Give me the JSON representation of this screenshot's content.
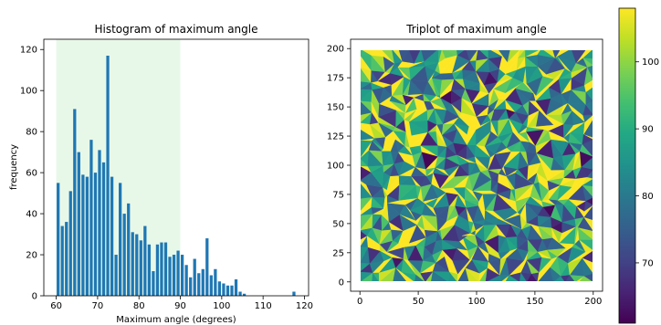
{
  "chart_data": [
    {
      "type": "bar",
      "title": "Histogram of maximum angle",
      "xlabel": "Maximum angle (degrees)",
      "ylabel": "frequency",
      "xlim": [
        57,
        121
      ],
      "ylim": [
        0,
        125
      ],
      "xticks": [
        "60",
        "70",
        "80",
        "90",
        "100",
        "110",
        "120"
      ],
      "yticks": [
        "0",
        "20",
        "40",
        "60",
        "80",
        "100",
        "120"
      ],
      "shaded_range": [
        60,
        90
      ],
      "shade_color": "#e8f8e8",
      "bar_color": "#1f77b4",
      "bin_width": 1,
      "bin_starts": [
        60,
        61,
        62,
        63,
        64,
        65,
        66,
        67,
        68,
        69,
        70,
        71,
        72,
        73,
        74,
        75,
        76,
        77,
        78,
        79,
        80,
        81,
        82,
        83,
        84,
        85,
        86,
        87,
        88,
        89,
        90,
        91,
        92,
        93,
        94,
        95,
        96,
        97,
        98,
        99,
        100,
        101,
        102,
        103,
        104,
        105,
        106,
        107,
        108,
        109,
        110,
        111,
        112,
        113,
        114,
        115,
        116,
        117
      ],
      "values": [
        55,
        34,
        36,
        51,
        91,
        70,
        59,
        58,
        76,
        60,
        71,
        65,
        117,
        58,
        20,
        55,
        40,
        45,
        31,
        30,
        27,
        34,
        25,
        12,
        25,
        26,
        26,
        19,
        20,
        22,
        20,
        15,
        9,
        18,
        11,
        13,
        28,
        10,
        13,
        7,
        6,
        5,
        5,
        8,
        2,
        1,
        0,
        0,
        0,
        0,
        0,
        0,
        0,
        0,
        0,
        0,
        0,
        2
      ]
    },
    {
      "type": "heatmap",
      "title": "Triplot of maximum angle",
      "xlim": [
        -8,
        208
      ],
      "ylim": [
        -8,
        208
      ],
      "xticks": [
        "0",
        "50",
        "100",
        "150",
        "200"
      ],
      "yticks": [
        "0",
        "25",
        "50",
        "75",
        "100",
        "125",
        "150",
        "175",
        "200"
      ],
      "colormap": "viridis",
      "colorbar_range": [
        61,
        108
      ],
      "colorbar_ticks": [
        "70",
        "80",
        "90",
        "100"
      ]
    }
  ]
}
